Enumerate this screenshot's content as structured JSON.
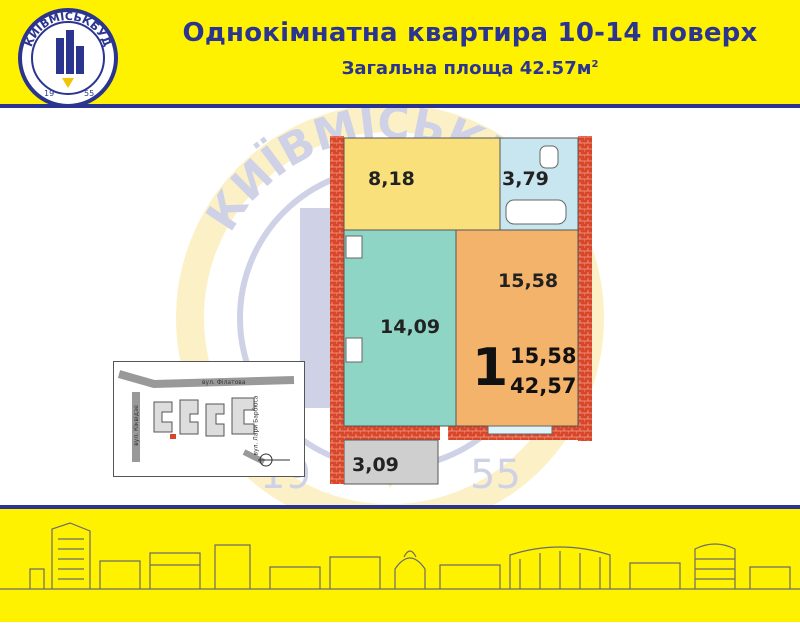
{
  "header": {
    "title": "Однокімнатна квартира 10-14 поверх",
    "subtitle": "Загальна площа 42.57м",
    "subtitle_sup": "2"
  },
  "logo": {
    "text": "КИЇВМІСЬКБУД",
    "year_left": "19",
    "year_right": "55"
  },
  "watermark": {
    "text": "КИЇВМІСЬКБУД",
    "year_left": "19",
    "year_right": "55"
  },
  "rooms": {
    "hall": "8,18",
    "bathroom": "3,79",
    "kitchen": "14,09",
    "living": "15,58",
    "balcony": "3,09"
  },
  "summary": {
    "rooms_count": "1",
    "living_area": "15,58",
    "total_area": "42,57"
  },
  "minimap": {
    "street_top": "вул. Філатова",
    "street_left": "вул. Кіквідзе",
    "street_right": "вул. Лари Барбюса"
  },
  "colors": {
    "yellow": "#fff200",
    "blue": "#2b3590",
    "brick": "#d9472b",
    "hall": "#f9e07a",
    "kitchen": "#8fd5c6",
    "living": "#f4b36b",
    "bath": "#c7e6ef",
    "balcony": "#cfcfcf"
  }
}
